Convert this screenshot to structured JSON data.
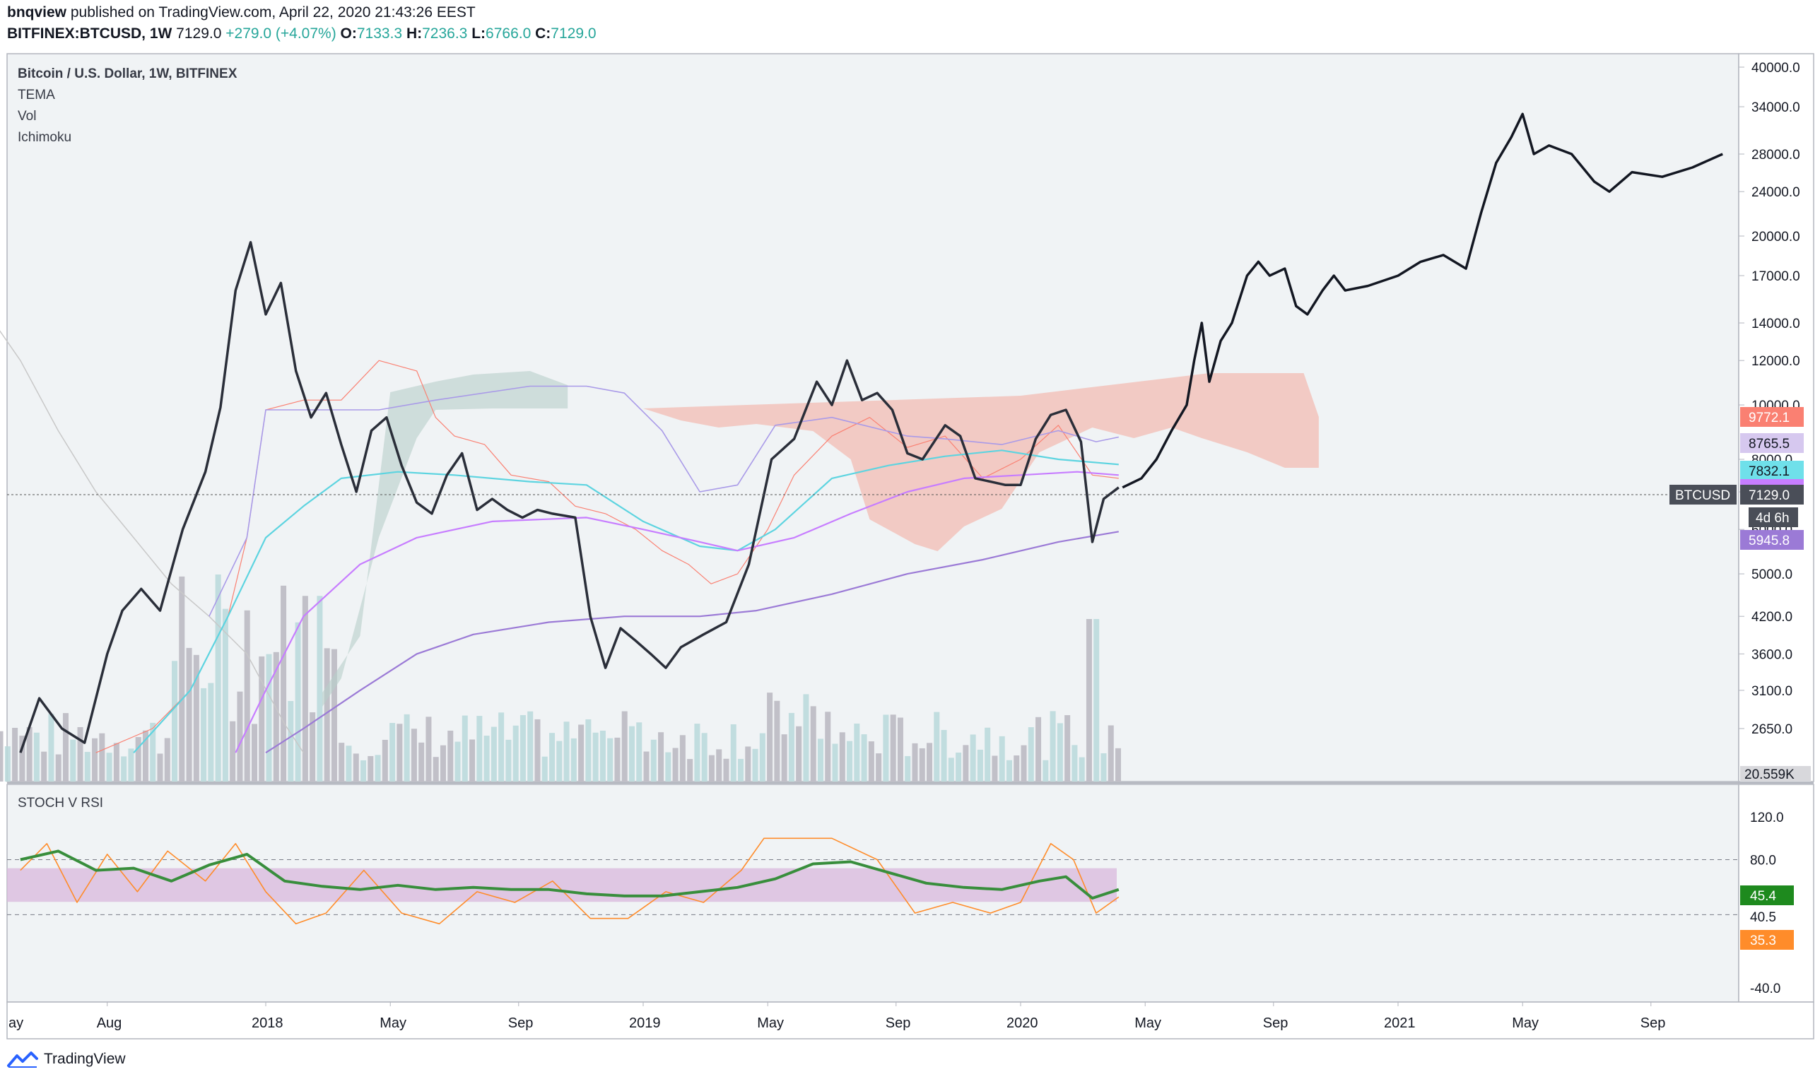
{
  "header": {
    "publisher": "bnqview",
    "published_text": "published on TradingView.com, April 22, 2020 21:43:26 EEST",
    "symbol": "BITFINEX:BTCUSD, 1W",
    "last": "7129.0",
    "change": "+279.0 (+4.07%)",
    "o_label": "O:",
    "o_value": "7133.3",
    "h_label": "H:",
    "h_value": "7236.3",
    "l_label": "L:",
    "l_value": "6766.0",
    "c_label": "C:",
    "c_value": "7129.0"
  },
  "legend": {
    "title": "Bitcoin / U.S. Dollar, 1W, BITFINEX",
    "items": [
      "TEMA",
      "Vol",
      "Ichimoku"
    ]
  },
  "lower_pane": {
    "title": "STOCH V RSI"
  },
  "price_labels": {
    "p1": "9772.1",
    "p2": "8765.5",
    "p3": "7832.1",
    "symbol_tag": "BTCUSD",
    "current": "7129.0",
    "countdown": "4d 6h",
    "p4": "5945.8",
    "volume": "20.559K",
    "rsi_a": "45.4",
    "rsi_mid": "40.5",
    "rsi_b": "35.3"
  },
  "footer": {
    "brand": "TradingView"
  },
  "colors": {
    "price": "#2a2e39",
    "projection": "#131722",
    "cloud": "#f4a89a",
    "kumo_green": "#b7cfca",
    "tenkan": "#fa8072",
    "kijun": "#a99ae8",
    "ema_cyan": "#5dd4e0",
    "ema_magenta": "#c77dff",
    "ema_purple": "#9b7ad6",
    "lagging": "#c8c8c8",
    "rsi": "#388e3c",
    "stoch": "#ff8c2a",
    "band": "#d9b8dc"
  },
  "chart_data": {
    "type": "line",
    "y_scale": "log",
    "y_ticks": [
      2650,
      3100,
      3600,
      4200,
      5000,
      6000,
      7000,
      8000,
      10000,
      12000,
      14000,
      17000,
      20000,
      24000,
      28000,
      34000,
      40000
    ],
    "y_tick_labels": [
      "2650.0",
      "3100.0",
      "3600.0",
      "4200.0",
      "5000.0",
      "6000.0",
      "7000.0",
      "8000.0",
      "10000.0",
      "12000.0",
      "14000.0",
      "17000.0",
      "20000.0",
      "24000.0",
      "28000.0",
      "34000.0",
      "40000.0"
    ],
    "x_ticks": [
      "ay",
      "Aug",
      "2018",
      "May",
      "Sep",
      "2019",
      "May",
      "Sep",
      "2020",
      "May",
      "Sep",
      "2021",
      "May",
      "Sep"
    ],
    "price_series": [
      [
        2017.35,
        2400
      ],
      [
        2017.4,
        3000
      ],
      [
        2017.46,
        2650
      ],
      [
        2017.52,
        2500
      ],
      [
        2017.58,
        3600
      ],
      [
        2017.62,
        4300
      ],
      [
        2017.67,
        4700
      ],
      [
        2017.72,
        4300
      ],
      [
        2017.78,
        6000
      ],
      [
        2017.84,
        7600
      ],
      [
        2017.88,
        9900
      ],
      [
        2017.92,
        16000
      ],
      [
        2017.96,
        19500
      ],
      [
        2018.0,
        14500
      ],
      [
        2018.04,
        16500
      ],
      [
        2018.08,
        11500
      ],
      [
        2018.12,
        9500
      ],
      [
        2018.16,
        10500
      ],
      [
        2018.2,
        8500
      ],
      [
        2018.24,
        7000
      ],
      [
        2018.28,
        9000
      ],
      [
        2018.32,
        9500
      ],
      [
        2018.36,
        7800
      ],
      [
        2018.4,
        6700
      ],
      [
        2018.44,
        6400
      ],
      [
        2018.48,
        7500
      ],
      [
        2018.52,
        8200
      ],
      [
        2018.56,
        6500
      ],
      [
        2018.6,
        6800
      ],
      [
        2018.64,
        6500
      ],
      [
        2018.68,
        6300
      ],
      [
        2018.72,
        6500
      ],
      [
        2018.76,
        6400
      ],
      [
        2018.82,
        6300
      ],
      [
        2018.86,
        4200
      ],
      [
        2018.9,
        3400
      ],
      [
        2018.94,
        4000
      ],
      [
        2018.98,
        3800
      ],
      [
        2019.02,
        3600
      ],
      [
        2019.06,
        3400
      ],
      [
        2019.1,
        3700
      ],
      [
        2019.16,
        3900
      ],
      [
        2019.22,
        4100
      ],
      [
        2019.28,
        5200
      ],
      [
        2019.34,
        8000
      ],
      [
        2019.4,
        8700
      ],
      [
        2019.46,
        11000
      ],
      [
        2019.5,
        10000
      ],
      [
        2019.54,
        12000
      ],
      [
        2019.58,
        10200
      ],
      [
        2019.62,
        10500
      ],
      [
        2019.66,
        9800
      ],
      [
        2019.7,
        8200
      ],
      [
        2019.74,
        8000
      ],
      [
        2019.8,
        9200
      ],
      [
        2019.84,
        8800
      ],
      [
        2019.88,
        7400
      ],
      [
        2019.92,
        7300
      ],
      [
        2019.96,
        7200
      ],
      [
        2020.0,
        7200
      ],
      [
        2020.04,
        8700
      ],
      [
        2020.08,
        9600
      ],
      [
        2020.12,
        9800
      ],
      [
        2020.16,
        8600
      ],
      [
        2020.19,
        5700
      ],
      [
        2020.22,
        6800
      ],
      [
        2020.26,
        7129
      ]
    ],
    "projection_series": [
      [
        2020.27,
        7129
      ],
      [
        2020.32,
        7400
      ],
      [
        2020.36,
        8000
      ],
      [
        2020.4,
        9000
      ],
      [
        2020.44,
        10000
      ],
      [
        2020.46,
        12000
      ],
      [
        2020.48,
        14000
      ],
      [
        2020.5,
        11000
      ],
      [
        2020.53,
        13000
      ],
      [
        2020.56,
        14000
      ],
      [
        2020.6,
        17000
      ],
      [
        2020.63,
        18000
      ],
      [
        2020.66,
        17000
      ],
      [
        2020.7,
        17500
      ],
      [
        2020.73,
        15000
      ],
      [
        2020.76,
        14500
      ],
      [
        2020.8,
        16000
      ],
      [
        2020.83,
        17000
      ],
      [
        2020.86,
        16000
      ],
      [
        2020.92,
        16300
      ],
      [
        2021.0,
        17000
      ],
      [
        2021.06,
        18000
      ],
      [
        2021.12,
        18500
      ],
      [
        2021.18,
        17500
      ],
      [
        2021.22,
        22000
      ],
      [
        2021.26,
        27000
      ],
      [
        2021.3,
        30000
      ],
      [
        2021.33,
        33000
      ],
      [
        2021.36,
        28000
      ],
      [
        2021.4,
        29000
      ],
      [
        2021.46,
        28000
      ],
      [
        2021.52,
        25000
      ],
      [
        2021.56,
        24000
      ],
      [
        2021.62,
        26000
      ],
      [
        2021.7,
        25500
      ],
      [
        2021.78,
        26500
      ],
      [
        2021.86,
        28000
      ]
    ],
    "rsi_range": [
      -40,
      120
    ],
    "rsi_ticks": [
      -40,
      40,
      80,
      120
    ],
    "rsi_tick_labels": [
      "-40.0",
      "40.5",
      "80.0",
      "120.0"
    ],
    "rsi_band": [
      40.5,
      72
    ],
    "rsi_series": [
      [
        2017.35,
        80
      ],
      [
        2017.45,
        88
      ],
      [
        2017.55,
        70
      ],
      [
        2017.65,
        72
      ],
      [
        2017.75,
        60
      ],
      [
        2017.85,
        75
      ],
      [
        2017.95,
        85
      ],
      [
        2018.05,
        60
      ],
      [
        2018.15,
        55
      ],
      [
        2018.25,
        52
      ],
      [
        2018.35,
        56
      ],
      [
        2018.45,
        52
      ],
      [
        2018.55,
        54
      ],
      [
        2018.65,
        52
      ],
      [
        2018.75,
        52
      ],
      [
        2018.85,
        48
      ],
      [
        2018.95,
        46
      ],
      [
        2019.05,
        46
      ],
      [
        2019.15,
        50
      ],
      [
        2019.25,
        54
      ],
      [
        2019.35,
        62
      ],
      [
        2019.45,
        76
      ],
      [
        2019.55,
        78
      ],
      [
        2019.65,
        68
      ],
      [
        2019.75,
        58
      ],
      [
        2019.85,
        54
      ],
      [
        2019.95,
        52
      ],
      [
        2020.05,
        60
      ],
      [
        2020.12,
        64
      ],
      [
        2020.19,
        44
      ],
      [
        2020.26,
        52
      ]
    ],
    "stoch_series": [
      [
        2017.35,
        70
      ],
      [
        2017.42,
        95
      ],
      [
        2017.5,
        40
      ],
      [
        2017.58,
        85
      ],
      [
        2017.66,
        50
      ],
      [
        2017.74,
        88
      ],
      [
        2017.84,
        60
      ],
      [
        2017.92,
        95
      ],
      [
        2018.0,
        50
      ],
      [
        2018.08,
        20
      ],
      [
        2018.16,
        30
      ],
      [
        2018.26,
        70
      ],
      [
        2018.36,
        30
      ],
      [
        2018.46,
        20
      ],
      [
        2018.56,
        50
      ],
      [
        2018.66,
        40
      ],
      [
        2018.76,
        60
      ],
      [
        2018.86,
        25
      ],
      [
        2018.96,
        25
      ],
      [
        2019.06,
        50
      ],
      [
        2019.16,
        40
      ],
      [
        2019.26,
        70
      ],
      [
        2019.32,
        100
      ],
      [
        2019.5,
        100
      ],
      [
        2019.62,
        80
      ],
      [
        2019.72,
        30
      ],
      [
        2019.82,
        40
      ],
      [
        2019.92,
        30
      ],
      [
        2020.0,
        40
      ],
      [
        2020.08,
        95
      ],
      [
        2020.14,
        80
      ],
      [
        2020.2,
        30
      ],
      [
        2020.26,
        45
      ]
    ]
  }
}
